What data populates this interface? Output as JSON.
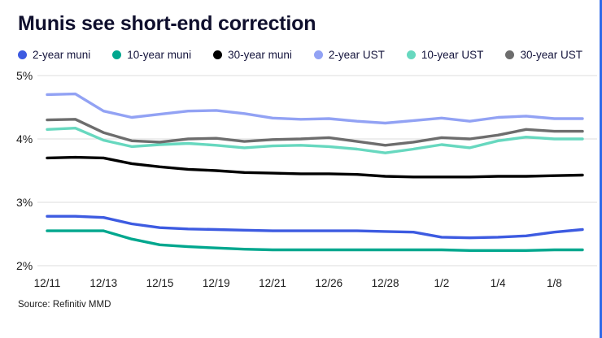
{
  "page": {
    "title": "Munis see short-end correction",
    "source": "Source: Refinitiv MMD",
    "accent_border_color": "#2f6ae8"
  },
  "axes": {
    "ytick_text_color": "#1a1a1a",
    "xtick_text_color": "#1a1a1a",
    "gridline_color": "#dcdcdc"
  },
  "chart_data": {
    "type": "line",
    "title": "Munis see short-end correction",
    "source": "Source: Refinitiv MMD",
    "grid": true,
    "legend_position": "top",
    "ylim": [
      2,
      5
    ],
    "yticks": [
      5,
      4,
      3,
      2
    ],
    "ytick_labels": [
      "5%",
      "4%",
      "3%",
      "2%"
    ],
    "x": [
      "12/11",
      "12/12",
      "12/13",
      "12/14",
      "12/15",
      "12/18",
      "12/19",
      "12/20",
      "12/21",
      "12/22",
      "12/26",
      "12/27",
      "12/28",
      "12/29",
      "1/2",
      "1/3",
      "1/4",
      "1/5",
      "1/8",
      "1/9"
    ],
    "x_tick_labels": [
      "12/11",
      "12/13",
      "12/15",
      "12/19",
      "12/21",
      "12/26",
      "12/28",
      "1/2",
      "1/4",
      "1/8"
    ],
    "x_tick_every": 2,
    "series": [
      {
        "name": "2-year muni",
        "color": "#3d5be1",
        "values": [
          2.78,
          2.78,
          2.76,
          2.66,
          2.6,
          2.58,
          2.57,
          2.56,
          2.55,
          2.55,
          2.55,
          2.55,
          2.54,
          2.53,
          2.45,
          2.44,
          2.45,
          2.47,
          2.53,
          2.57
        ]
      },
      {
        "name": "10-year muni",
        "color": "#00a78e",
        "values": [
          2.55,
          2.55,
          2.55,
          2.42,
          2.33,
          2.3,
          2.28,
          2.26,
          2.25,
          2.25,
          2.25,
          2.25,
          2.25,
          2.25,
          2.25,
          2.24,
          2.24,
          2.24,
          2.25,
          2.25
        ]
      },
      {
        "name": "30-year muni",
        "color": "#000000",
        "values": [
          3.7,
          3.71,
          3.7,
          3.61,
          3.56,
          3.52,
          3.5,
          3.47,
          3.46,
          3.45,
          3.45,
          3.44,
          3.41,
          3.4,
          3.4,
          3.4,
          3.41,
          3.41,
          3.42,
          3.43
        ]
      },
      {
        "name": "2-year UST",
        "color": "#92a2f4",
        "values": [
          4.7,
          4.71,
          4.44,
          4.34,
          4.39,
          4.44,
          4.45,
          4.4,
          4.33,
          4.31,
          4.32,
          4.28,
          4.25,
          4.29,
          4.33,
          4.28,
          4.34,
          4.36,
          4.32,
          4.32
        ]
      },
      {
        "name": "10-year UST",
        "color": "#67d8bf",
        "values": [
          4.15,
          4.17,
          3.98,
          3.88,
          3.91,
          3.93,
          3.9,
          3.86,
          3.89,
          3.9,
          3.88,
          3.84,
          3.78,
          3.84,
          3.91,
          3.86,
          3.97,
          4.03,
          4.0,
          4.0
        ]
      },
      {
        "name": "30-year UST",
        "color": "#6d6d6d",
        "values": [
          4.3,
          4.31,
          4.1,
          3.97,
          3.95,
          4.0,
          4.01,
          3.96,
          3.99,
          4.0,
          4.02,
          3.96,
          3.9,
          3.95,
          4.02,
          4.0,
          4.06,
          4.15,
          4.12,
          4.12
        ]
      }
    ]
  }
}
